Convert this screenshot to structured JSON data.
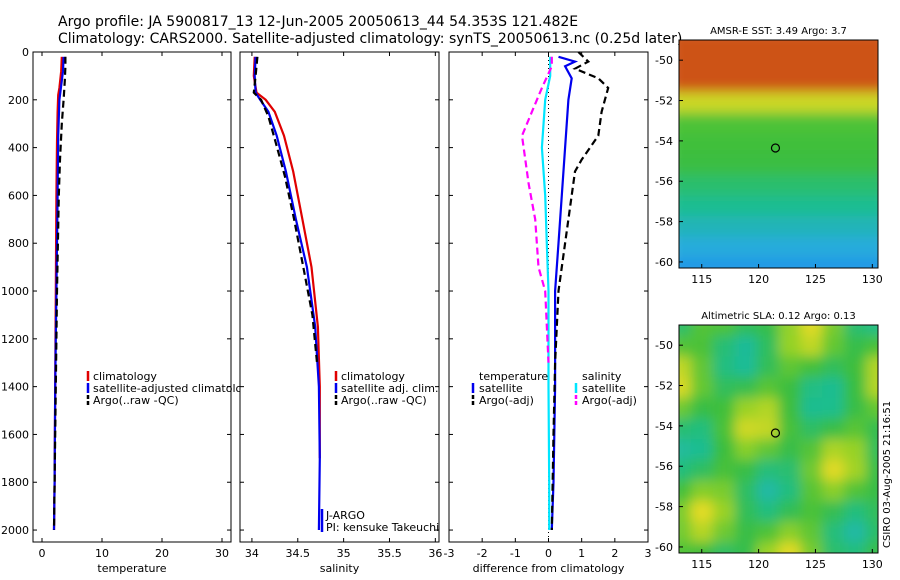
{
  "title": {
    "line1": "Argo profile: JA 5900817_13 12-Jun-2005 20050613_44 54.353S 121.482E",
    "line2": "Climatology: CARS2000. Satellite-adjusted climatology: synTS_20050613.nc (0.25d later)"
  },
  "colors": {
    "red": "#e00000",
    "blue": "#0000ee",
    "black": "#000000",
    "cyan": "#00e6ff",
    "magenta": "#ff00ff"
  },
  "chart_data": [
    {
      "type": "line",
      "xlabel": "temperature",
      "ylabel": "",
      "xlim": [
        -1.5,
        31.5
      ],
      "ylim": [
        2050,
        0
      ],
      "xticks": [
        0,
        10,
        20,
        30
      ],
      "yticks": [
        0,
        200,
        400,
        600,
        800,
        1000,
        1200,
        1400,
        1600,
        1800,
        2000
      ],
      "legend": [
        {
          "label": "climatology",
          "color": "red",
          "style": "solid"
        },
        {
          "label": "satellite-adjusted climatology",
          "color": "blue",
          "style": "solid"
        },
        {
          "label": "Argo(..raw -QC)",
          "color": "black",
          "style": "dashed"
        }
      ],
      "legend_placement": "lower-right",
      "series": [
        {
          "name": "climatology",
          "color": "red",
          "dash": false,
          "points": [
            [
              3.3,
              20
            ],
            [
              3.2,
              80
            ],
            [
              2.9,
              150
            ],
            [
              2.7,
              180
            ],
            [
              2.6,
              250
            ],
            [
              2.5,
              380
            ],
            [
              2.4,
              600
            ],
            [
              2.3,
              1000
            ],
            [
              2.2,
              1400
            ],
            [
              2.1,
              1800
            ],
            [
              2.0,
              2000
            ]
          ]
        },
        {
          "name": "satellite-adjusted climatology",
          "color": "blue",
          "dash": false,
          "points": [
            [
              3.6,
              20
            ],
            [
              3.5,
              80
            ],
            [
              3.1,
              160
            ],
            [
              2.9,
              200
            ],
            [
              2.7,
              350
            ],
            [
              2.6,
              600
            ],
            [
              2.4,
              1000
            ],
            [
              2.2,
              1400
            ],
            [
              2.1,
              1800
            ],
            [
              2.0,
              2000
            ]
          ]
        },
        {
          "name": "Argo(..raw -QC)",
          "color": "black",
          "dash": true,
          "points": [
            [
              3.9,
              20
            ],
            [
              3.9,
              60
            ],
            [
              3.8,
              120
            ],
            [
              3.6,
              200
            ],
            [
              3.3,
              300
            ],
            [
              3.0,
              450
            ],
            [
              2.8,
              600
            ],
            [
              2.5,
              1000
            ],
            [
              2.3,
              1400
            ],
            [
              2.1,
              1800
            ],
            [
              2.0,
              2000
            ]
          ]
        }
      ]
    },
    {
      "type": "line",
      "xlabel": "salinity",
      "xlim": [
        33.87,
        36.04
      ],
      "ylim": [
        2050,
        0
      ],
      "xticks": [
        34,
        34.5,
        35,
        35.5,
        36
      ],
      "yticks": [
        0,
        200,
        400,
        600,
        800,
        1000,
        1200,
        1400,
        1600,
        1800,
        2000
      ],
      "legend": [
        {
          "label": "climatology",
          "color": "red",
          "style": "solid"
        },
        {
          "label": "satellite adj. clim.",
          "color": "blue",
          "style": "solid"
        },
        {
          "label": "Argo(..raw -QC)",
          "color": "black",
          "style": "dashed"
        }
      ],
      "legend_placement": "lower-right",
      "annotation": [
        "J-ARGO",
        "PI: kensuke Takeuchi"
      ],
      "series": [
        {
          "name": "climatology",
          "color": "red",
          "dash": false,
          "points": [
            [
              34.03,
              20
            ],
            [
              34.02,
              100
            ],
            [
              34.05,
              170
            ],
            [
              34.15,
              200
            ],
            [
              34.25,
              250
            ],
            [
              34.35,
              350
            ],
            [
              34.45,
              500
            ],
            [
              34.55,
              700
            ],
            [
              34.65,
              900
            ],
            [
              34.72,
              1150
            ],
            [
              34.74,
              1400
            ],
            [
              34.74,
              1700
            ]
          ]
        },
        {
          "name": "satellite adj. clim.",
          "color": "blue",
          "dash": false,
          "points": [
            [
              34.04,
              20
            ],
            [
              34.03,
              100
            ],
            [
              34.04,
              170
            ],
            [
              34.09,
              200
            ],
            [
              34.18,
              250
            ],
            [
              34.27,
              350
            ],
            [
              34.37,
              500
            ],
            [
              34.48,
              700
            ],
            [
              34.6,
              900
            ],
            [
              34.69,
              1150
            ],
            [
              34.73,
              1400
            ],
            [
              34.74,
              1700
            ],
            [
              34.73,
              2000
            ]
          ]
        },
        {
          "name": "Argo(..raw -QC)",
          "color": "black",
          "dash": true,
          "points": [
            [
              34.06,
              20
            ],
            [
              34.04,
              100
            ],
            [
              34.02,
              170
            ],
            [
              34.1,
              200
            ],
            [
              34.18,
              270
            ],
            [
              34.26,
              380
            ],
            [
              34.36,
              520
            ],
            [
              34.46,
              700
            ],
            [
              34.56,
              900
            ],
            [
              34.66,
              1100
            ],
            [
              34.71,
              1300
            ]
          ]
        }
      ]
    },
    {
      "type": "line",
      "xlabel": "difference from climatology",
      "xlim": [
        -3,
        3
      ],
      "ylim": [
        2050,
        0
      ],
      "xticks": [
        -3,
        -2,
        -1,
        0,
        1,
        2,
        3
      ],
      "yticks": [
        0,
        200,
        400,
        600,
        800,
        1000,
        1200,
        1400,
        1600,
        1800,
        2000
      ],
      "legend": [
        {
          "label": "temperature",
          "color": "",
          "style": "none"
        },
        {
          "label": "satellite",
          "color": "blue",
          "style": "solid"
        },
        {
          "label": "Argo(-adj)",
          "color": "black",
          "style": "dashed"
        },
        {
          "label": "salinity",
          "color": "",
          "style": "none"
        },
        {
          "label": "satellite",
          "color": "cyan",
          "style": "solid"
        },
        {
          "label": "Argo(-adj)",
          "color": "magenta",
          "style": "dashed"
        }
      ],
      "legend_placement": "lower-center",
      "series": [
        {
          "name": "temperature satellite",
          "color": "blue",
          "dash": false,
          "points": [
            [
              0.3,
              20
            ],
            [
              0.8,
              40
            ],
            [
              0.5,
              60
            ],
            [
              0.7,
              110
            ],
            [
              0.6,
              200
            ],
            [
              0.5,
              400
            ],
            [
              0.4,
              600
            ],
            [
              0.3,
              800
            ],
            [
              0.2,
              1000
            ],
            [
              0.2,
              1400
            ],
            [
              0.15,
              1800
            ],
            [
              0.1,
              2000
            ]
          ]
        },
        {
          "name": "temperature Argo(-adj)",
          "color": "black",
          "dash": true,
          "points": [
            [
              0.9,
              0
            ],
            [
              1.2,
              40
            ],
            [
              0.8,
              70
            ],
            [
              1.5,
              110
            ],
            [
              1.8,
              150
            ],
            [
              1.6,
              250
            ],
            [
              1.5,
              350
            ],
            [
              1.0,
              450
            ],
            [
              0.8,
              500
            ],
            [
              0.7,
              600
            ],
            [
              0.5,
              800
            ],
            [
              0.3,
              1000
            ],
            [
              0.2,
              1300
            ],
            [
              0.15,
              1600
            ],
            [
              0.1,
              2000
            ]
          ]
        },
        {
          "name": "salinity satellite",
          "color": "cyan",
          "dash": false,
          "points": [
            [
              0.05,
              20
            ],
            [
              0.05,
              100
            ],
            [
              -0.1,
              200
            ],
            [
              -0.2,
              400
            ],
            [
              -0.1,
              600
            ],
            [
              -0.05,
              800
            ],
            [
              0.0,
              1000
            ],
            [
              0.0,
              1400
            ],
            [
              0.02,
              1800
            ],
            [
              0.02,
              2000
            ]
          ]
        },
        {
          "name": "salinity Argo(-adj)",
          "color": "magenta",
          "dash": true,
          "points": [
            [
              0.1,
              20
            ],
            [
              0.1,
              60
            ],
            [
              -0.2,
              150
            ],
            [
              -0.5,
              250
            ],
            [
              -0.8,
              350
            ],
            [
              -0.7,
              450
            ],
            [
              -0.6,
              550
            ],
            [
              -0.4,
              700
            ],
            [
              -0.3,
              900
            ],
            [
              -0.1,
              1000
            ],
            [
              0.0,
              1300
            ]
          ]
        }
      ]
    },
    {
      "type": "heatmap",
      "title": "AMSR-E SST: 3.49 Argo: 3.7",
      "xlim": [
        113,
        130.5
      ],
      "ylim": [
        -60.3,
        -49
      ],
      "xticks": [
        115,
        120,
        125,
        130
      ],
      "yticks": [
        -50,
        -52,
        -54,
        -56,
        -58,
        -60
      ],
      "marker": {
        "lon": 121.482,
        "lat": -54.353
      }
    },
    {
      "type": "heatmap",
      "title": "Altimetric SLA: 0.12 Argo: 0.13",
      "xlim": [
        113,
        130.5
      ],
      "ylim": [
        -60.3,
        -49
      ],
      "xticks": [
        115,
        120,
        125,
        130
      ],
      "yticks": [
        -50,
        -52,
        -54,
        -56,
        -58,
        -60
      ],
      "marker": {
        "lon": 121.482,
        "lat": -54.353
      }
    }
  ],
  "side_label": "CSIRO 03-Aug-2005 21:16:51"
}
